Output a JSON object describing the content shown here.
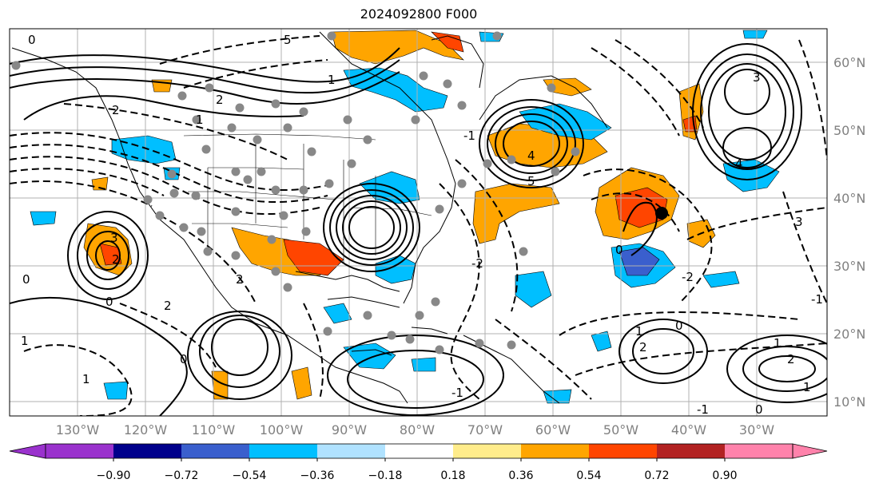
{
  "title": "2024092800 F000",
  "lon_labels": [
    "130°W",
    "120°W",
    "110°W",
    "100°W",
    "90°W",
    "80°W",
    "70°W",
    "60°W",
    "50°W",
    "40°W",
    "30°W"
  ],
  "lat_labels": [
    "60°N",
    "50°N",
    "40°N",
    "30°N",
    "20°N",
    "10°N"
  ],
  "colorbar": {
    "ticks": [
      "−0.90",
      "−0.72",
      "−0.54",
      "−0.36",
      "−0.18",
      "0.18",
      "0.36",
      "0.54",
      "0.72",
      "0.90"
    ],
    "colors": [
      "#9a32cd",
      "#00008b",
      "#3a5fcd",
      "#00bfff",
      "#b0e2ff",
      "#ffffff",
      "#ffec8b",
      "#ffa500",
      "#ff4500",
      "#b22222",
      "#ff82ab"
    ]
  },
  "contour_labels": [
    "0",
    "5",
    "2",
    "1",
    "1",
    "3",
    "4",
    "5",
    "-1",
    "2",
    "3",
    "2",
    "0",
    "1",
    "2",
    "0",
    "-2",
    "-1",
    "-1",
    "1",
    "0",
    "3",
    "4",
    "2",
    "1",
    "0",
    "-2",
    "2",
    "1",
    "-1",
    "2",
    "0",
    "1",
    "0"
  ]
}
